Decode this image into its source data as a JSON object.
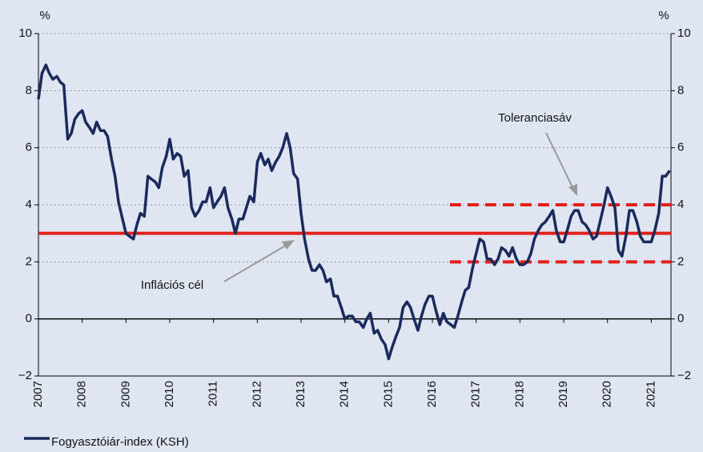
{
  "chart_data": {
    "type": "line",
    "y_unit_label": "%",
    "y2_unit_label": "%",
    "x": [
      2007,
      2007.08,
      2007.17,
      2007.25,
      2007.33,
      2007.42,
      2007.5,
      2007.58,
      2007.67,
      2007.75,
      2007.83,
      2007.92,
      2008,
      2008.08,
      2008.17,
      2008.25,
      2008.33,
      2008.42,
      2008.5,
      2008.58,
      2008.67,
      2008.75,
      2008.83,
      2008.92,
      2009,
      2009.08,
      2009.17,
      2009.25,
      2009.33,
      2009.42,
      2009.5,
      2009.58,
      2009.67,
      2009.75,
      2009.83,
      2009.92,
      2010,
      2010.08,
      2010.17,
      2010.25,
      2010.33,
      2010.42,
      2010.5,
      2010.58,
      2010.67,
      2010.75,
      2010.83,
      2010.92,
      2011,
      2011.08,
      2011.17,
      2011.25,
      2011.33,
      2011.42,
      2011.5,
      2011.58,
      2011.67,
      2011.75,
      2011.83,
      2011.92,
      2012,
      2012.08,
      2012.17,
      2012.25,
      2012.33,
      2012.42,
      2012.5,
      2012.58,
      2012.67,
      2012.75,
      2012.83,
      2012.92,
      2013,
      2013.08,
      2013.17,
      2013.25,
      2013.33,
      2013.42,
      2013.5,
      2013.58,
      2013.67,
      2013.75,
      2013.83,
      2013.92,
      2014,
      2014.08,
      2014.17,
      2014.25,
      2014.33,
      2014.42,
      2014.5,
      2014.58,
      2014.67,
      2014.75,
      2014.83,
      2014.92,
      2015,
      2015.08,
      2015.17,
      2015.25,
      2015.33,
      2015.42,
      2015.5,
      2015.58,
      2015.67,
      2015.75,
      2015.83,
      2015.92,
      2016,
      2016.08,
      2016.17,
      2016.25,
      2016.33,
      2016.42,
      2016.5,
      2016.58,
      2016.67,
      2016.75,
      2016.83,
      2016.92,
      2017,
      2017.08,
      2017.17,
      2017.25,
      2017.33,
      2017.42,
      2017.5,
      2017.58,
      2017.67,
      2017.75,
      2017.83,
      2017.92,
      2018,
      2018.08,
      2018.17,
      2018.25,
      2018.33,
      2018.42,
      2018.5,
      2018.58,
      2018.67,
      2018.75,
      2018.83,
      2018.92,
      2019,
      2019.08,
      2019.17,
      2019.25,
      2019.33,
      2019.42,
      2019.5,
      2019.58,
      2019.67,
      2019.75,
      2019.83,
      2019.92,
      2020,
      2020.08,
      2020.17,
      2020.25,
      2020.33,
      2020.42,
      2020.5,
      2020.58,
      2020.67,
      2020.75,
      2020.83,
      2020.92,
      2021,
      2021.08,
      2021.17,
      2021.25,
      2021.33,
      2021.42
    ],
    "series": [
      {
        "name": "Fogyasztóiár-index (KSH)",
        "color": "#1b2a5c",
        "values": [
          7.7,
          8.6,
          8.9,
          8.6,
          8.4,
          8.5,
          8.3,
          8.2,
          6.3,
          6.5,
          7.0,
          7.2,
          7.3,
          6.9,
          6.7,
          6.5,
          6.9,
          6.6,
          6.6,
          6.4,
          5.6,
          5.0,
          4.1,
          3.5,
          3.0,
          2.9,
          2.8,
          3.3,
          3.7,
          3.6,
          5.0,
          4.9,
          4.8,
          4.6,
          5.3,
          5.7,
          6.3,
          5.6,
          5.8,
          5.7,
          5.0,
          5.2,
          3.9,
          3.6,
          3.8,
          4.1,
          4.1,
          4.6,
          3.9,
          4.1,
          4.3,
          4.6,
          3.9,
          3.5,
          3.0,
          3.5,
          3.5,
          3.9,
          4.3,
          4.1,
          5.5,
          5.8,
          5.4,
          5.6,
          5.2,
          5.5,
          5.7,
          6.0,
          6.5,
          6.0,
          5.1,
          4.9,
          3.7,
          2.8,
          2.1,
          1.7,
          1.7,
          1.9,
          1.7,
          1.3,
          1.4,
          0.8,
          0.8,
          0.4,
          0.0,
          0.1,
          0.1,
          -0.1,
          -0.1,
          -0.3,
          0.0,
          0.2,
          -0.5,
          -0.4,
          -0.7,
          -0.9,
          -1.4,
          -1.0,
          -0.6,
          -0.3,
          0.4,
          0.6,
          0.4,
          0.0,
          -0.4,
          0.1,
          0.5,
          0.8,
          0.8,
          0.3,
          -0.2,
          0.2,
          -0.1,
          -0.2,
          -0.3,
          0.1,
          0.6,
          1.0,
          1.1,
          1.8,
          2.3,
          2.8,
          2.7,
          2.1,
          2.1,
          1.9,
          2.1,
          2.5,
          2.4,
          2.2,
          2.5,
          2.1,
          1.9,
          1.9,
          2.0,
          2.3,
          2.8,
          3.1,
          3.3,
          3.4,
          3.6,
          3.8,
          3.1,
          2.7,
          2.7,
          3.1,
          3.6,
          3.8,
          3.8,
          3.4,
          3.3,
          3.1,
          2.8,
          2.9,
          3.4,
          4.0,
          4.6,
          4.3,
          3.9,
          2.4,
          2.2,
          2.9,
          3.8,
          3.8,
          3.4,
          2.9,
          2.7,
          2.7,
          2.7,
          3.1,
          3.7,
          5.0,
          5.0,
          5.2
        ]
      }
    ],
    "target": {
      "value": 3,
      "label": "Inflációs cél",
      "color": "#e3201b"
    },
    "band": {
      "lower": 2,
      "upper": 4,
      "start": 2016.4,
      "label": "Toleranciasáv",
      "color": "#e3201b"
    },
    "xlim": [
      2007,
      2021.45
    ],
    "xticks": [
      2007,
      2008,
      2009,
      2010,
      2011,
      2012,
      2013,
      2014,
      2015,
      2016,
      2017,
      2018,
      2019,
      2020,
      2021
    ],
    "ylim": [
      -2,
      10
    ],
    "yticks": [
      {
        "value": -2,
        "label": "−2"
      },
      0,
      2,
      4,
      6,
      8,
      10
    ],
    "y2lim": [
      -2,
      10
    ],
    "y2ticks": [
      {
        "value": -2,
        "label": "−2"
      },
      0,
      2,
      4,
      6,
      8,
      10
    ],
    "grid": true,
    "legend": "bottom-left"
  }
}
